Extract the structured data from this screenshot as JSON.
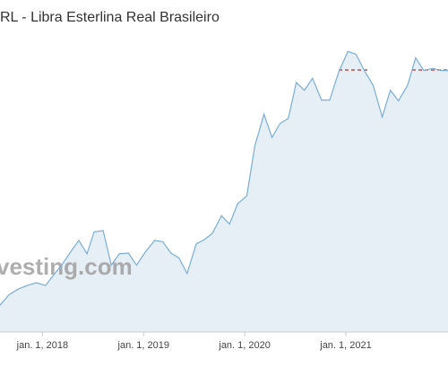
{
  "chart_data": {
    "type": "area",
    "title": "RL - Libra Esterlina Real Brasileiro",
    "watermark": "vesting.com",
    "x": [
      2017.58,
      2017.67,
      2017.76,
      2017.85,
      2017.94,
      2018.03,
      2018.1,
      2018.19,
      2018.27,
      2018.36,
      2018.44,
      2018.51,
      2018.6,
      2018.68,
      2018.76,
      2018.85,
      2018.93,
      2019.02,
      2019.11,
      2019.19,
      2019.27,
      2019.35,
      2019.43,
      2019.52,
      2019.6,
      2019.68,
      2019.77,
      2019.85,
      2019.93,
      2020.02,
      2020.1,
      2020.19,
      2020.27,
      2020.35,
      2020.43,
      2020.51,
      2020.59,
      2020.67,
      2020.76,
      2020.84,
      2020.93,
      2021.02,
      2021.1,
      2021.19,
      2021.27,
      2021.36,
      2021.44,
      2021.52,
      2021.61,
      2021.69,
      2021.77,
      2021.86,
      2021.94,
      2022.01
    ],
    "values": [
      4.1,
      4.25,
      4.33,
      4.38,
      4.42,
      4.38,
      4.51,
      4.67,
      4.84,
      5.02,
      4.83,
      5.14,
      5.16,
      4.67,
      4.83,
      4.84,
      4.67,
      4.86,
      5.02,
      5.0,
      4.84,
      4.77,
      4.55,
      4.97,
      5.03,
      5.12,
      5.37,
      5.25,
      5.54,
      5.65,
      6.36,
      6.81,
      6.48,
      6.68,
      6.75,
      7.26,
      7.15,
      7.32,
      7.01,
      7.01,
      7.41,
      7.7,
      7.66,
      7.41,
      7.22,
      6.77,
      7.15,
      7.0,
      7.22,
      7.61,
      7.43,
      7.46,
      7.43,
      7.43
    ],
    "color": "#7aaed6",
    "fill": "#e6eef6",
    "xlim": [
      2017.58,
      2022.01
    ],
    "ylim": [
      3.72,
      8.43
    ],
    "xticks": [
      {
        "value": 2018,
        "label": "jan. 1, 2018"
      },
      {
        "value": 2019,
        "label": "jan. 1, 2019"
      },
      {
        "value": 2020,
        "label": "jan. 1, 2020"
      },
      {
        "value": 2021,
        "label": "jan. 1, 2021"
      }
    ]
  }
}
